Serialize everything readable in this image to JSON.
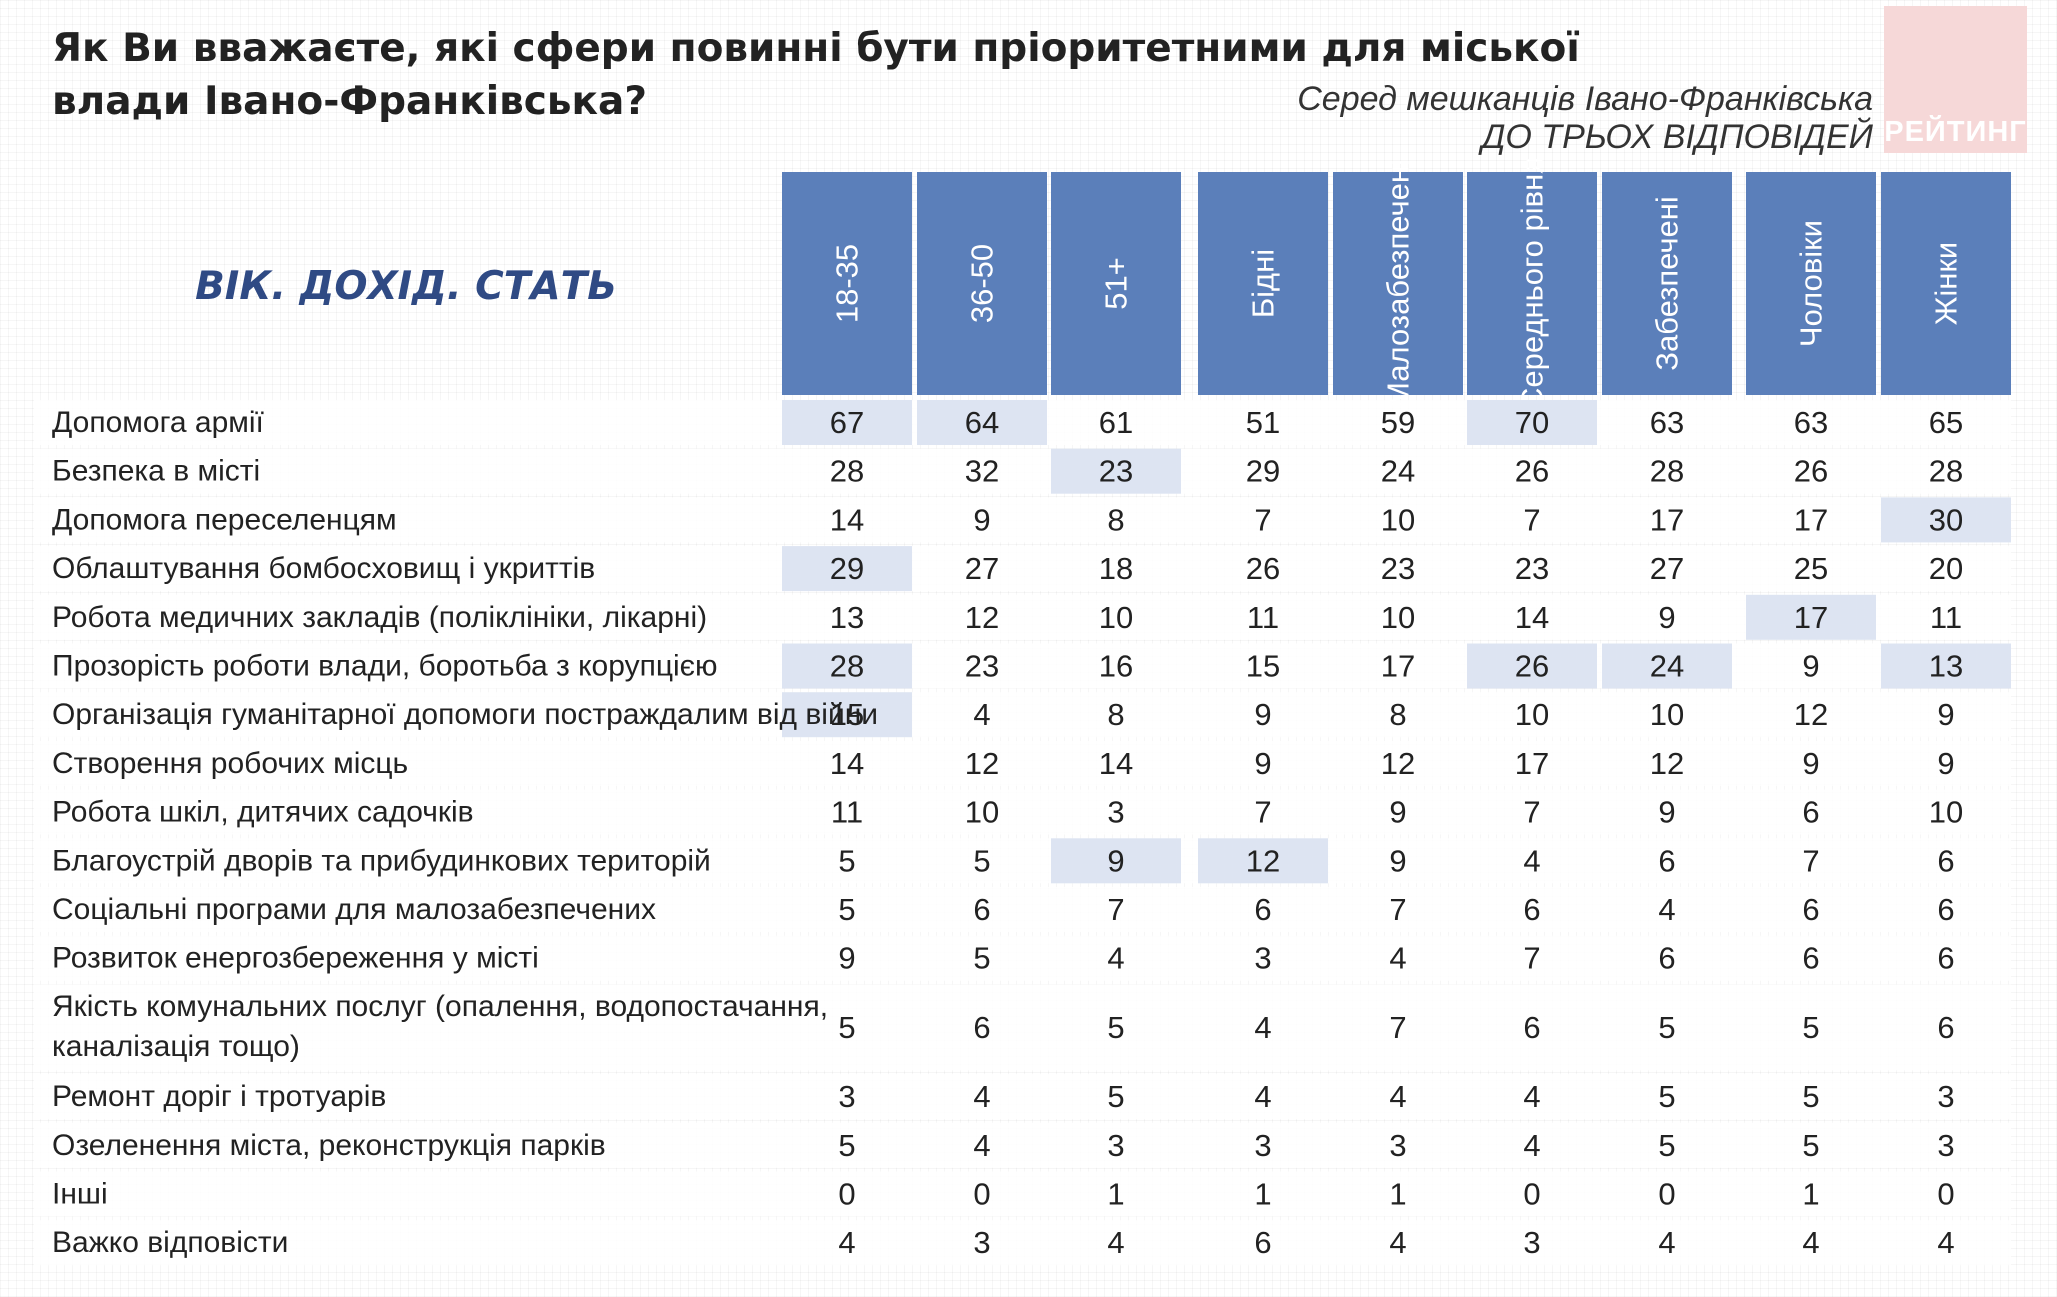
{
  "title": "Як Ви вважаєте, які сфери повинні бути пріоритетними для міської влади Івано-Франківська?",
  "subtitle_line1": "Серед мешканців Івано-Франківська",
  "subtitle_line2": "ДО ТРЬОХ ВІДПОВІДЕЙ",
  "logo_text": "РЕЙТИНГ",
  "group_label": "ВІК. ДОХІД. СТАТЬ",
  "colors": {
    "header_bg": "#5b7fba",
    "header_text": "#ffffff",
    "highlight": "#dde4f2",
    "row_bg": "#ffffff",
    "group_label": "#2f4a84"
  },
  "chart_data": {
    "type": "table",
    "title": "Як Ви вважаєте, які сфери повинні бути пріоритетними для міської влади Івано-Франківська?",
    "columns": [
      "18-35",
      "36-50",
      "51+",
      "Бідні",
      "Малозабезпечені",
      "Середнього рівня",
      "Забезпечені",
      "Чоловіки",
      "Жінки"
    ],
    "column_groups": [
      [
        0,
        1,
        2
      ],
      [
        3,
        4,
        5,
        6
      ],
      [
        7,
        8
      ]
    ],
    "rows": [
      {
        "label": [
          "Допомога армії"
        ],
        "values": [
          67,
          64,
          61,
          51,
          59,
          70,
          63,
          63,
          65
        ],
        "highlight": [
          0,
          1,
          5
        ]
      },
      {
        "label": [
          "Безпека в місті"
        ],
        "values": [
          28,
          32,
          23,
          29,
          24,
          26,
          28,
          26,
          28
        ],
        "highlight": [
          2
        ]
      },
      {
        "label": [
          "Допомога переселенцям"
        ],
        "values": [
          14,
          9,
          8,
          7,
          10,
          7,
          17,
          17,
          30
        ],
        "highlight": [
          8
        ]
      },
      {
        "label": [
          "Облаштування бомбосховищ і укриттів"
        ],
        "values": [
          29,
          27,
          18,
          26,
          23,
          23,
          27,
          25,
          20
        ],
        "highlight": [
          0
        ]
      },
      {
        "label": [
          "Робота медичних закладів (поліклініки, лікарні)"
        ],
        "values": [
          13,
          12,
          10,
          11,
          10,
          14,
          9,
          17,
          11
        ],
        "highlight": [
          7
        ]
      },
      {
        "label": [
          "Прозорість роботи влади, боротьба з корупцією"
        ],
        "values": [
          28,
          23,
          16,
          15,
          17,
          26,
          24,
          9,
          13
        ],
        "highlight": [
          0,
          5,
          6,
          8
        ]
      },
      {
        "label": [
          "Організація гуманітарної допомоги постраждалим від війни"
        ],
        "values": [
          15,
          4,
          8,
          9,
          8,
          10,
          10,
          12,
          9
        ],
        "highlight": [
          0
        ]
      },
      {
        "label": [
          "Створення робочих місць"
        ],
        "values": [
          14,
          12,
          14,
          9,
          12,
          17,
          12,
          9,
          9
        ],
        "highlight": []
      },
      {
        "label": [
          "Робота шкіл, дитячих садочків"
        ],
        "values": [
          11,
          10,
          3,
          7,
          9,
          7,
          9,
          6,
          10
        ],
        "highlight": []
      },
      {
        "label": [
          "Благоустрій дворів та прибудинкових територій"
        ],
        "values": [
          5,
          5,
          9,
          12,
          9,
          4,
          6,
          7,
          6
        ],
        "highlight": [
          2,
          3
        ]
      },
      {
        "label": [
          "Соціальні програми для малозабезпечених"
        ],
        "values": [
          5,
          6,
          7,
          6,
          7,
          6,
          4,
          6,
          6
        ],
        "highlight": []
      },
      {
        "label": [
          "Розвиток енергозбереження у місті"
        ],
        "values": [
          9,
          5,
          4,
          3,
          4,
          7,
          6,
          6,
          6
        ],
        "highlight": []
      },
      {
        "label": [
          "Якість комунальних послуг (опалення, водопостачання,",
          "каналізація тощо)"
        ],
        "values": [
          5,
          6,
          5,
          4,
          7,
          6,
          5,
          5,
          6
        ],
        "highlight": []
      },
      {
        "label": [
          "Ремонт доріг і тротуарів"
        ],
        "values": [
          3,
          4,
          5,
          4,
          4,
          4,
          5,
          5,
          3
        ],
        "highlight": []
      },
      {
        "label": [
          "Озеленення міста, реконструкція парків"
        ],
        "values": [
          5,
          4,
          3,
          3,
          3,
          4,
          5,
          5,
          3
        ],
        "highlight": []
      },
      {
        "label": [
          "Інші"
        ],
        "values": [
          0,
          0,
          1,
          1,
          1,
          0,
          0,
          1,
          0
        ],
        "highlight": []
      },
      {
        "label": [
          "Важко відповісти"
        ],
        "values": [
          4,
          3,
          4,
          6,
          4,
          3,
          4,
          4,
          4
        ],
        "highlight": []
      }
    ]
  }
}
